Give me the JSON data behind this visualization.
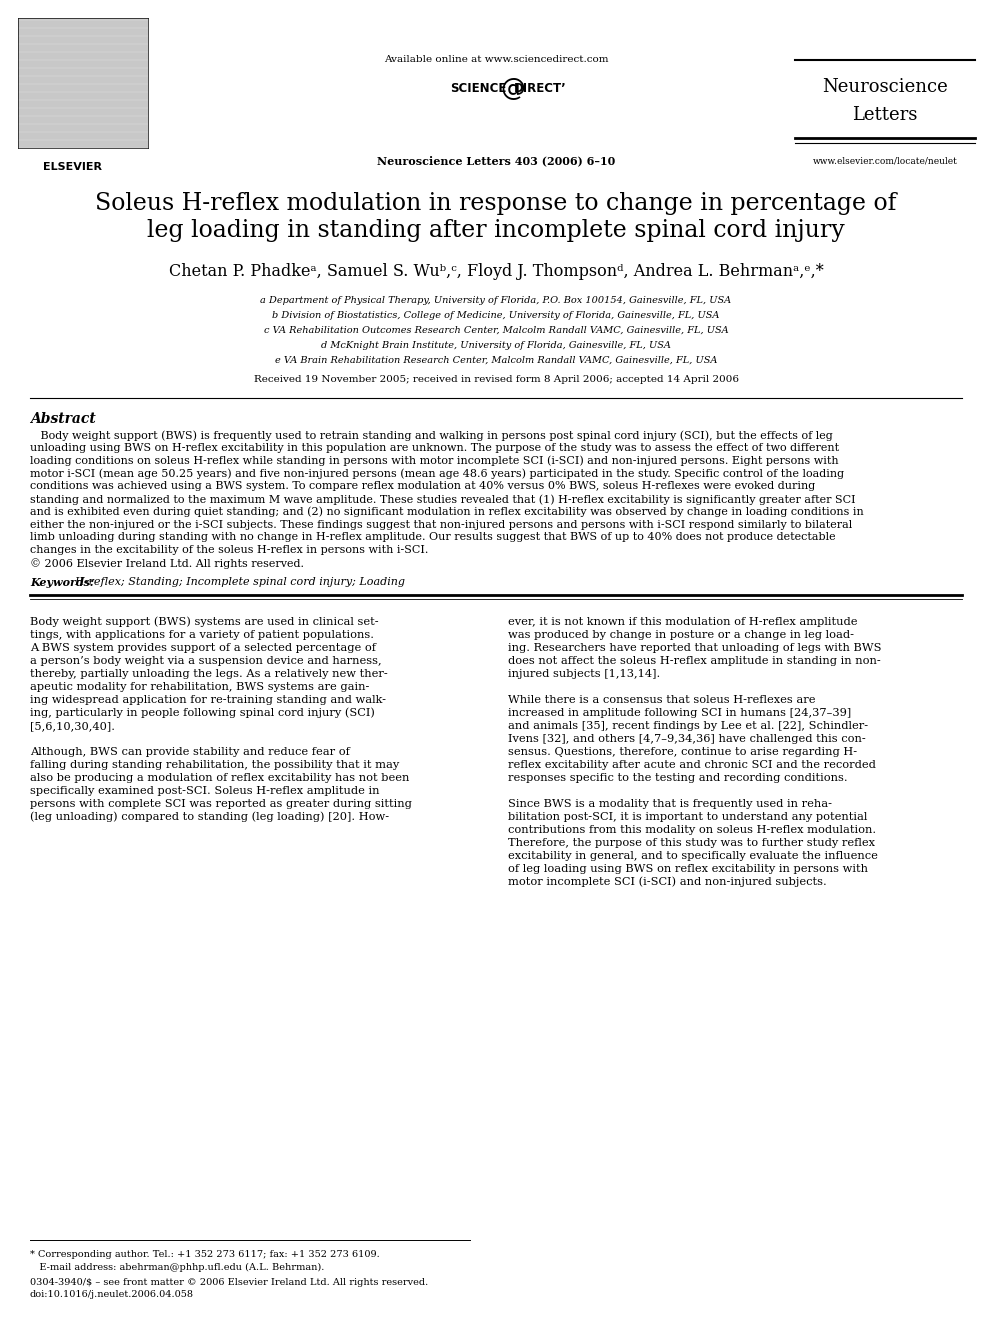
{
  "bg_color": "#ffffff",
  "title_article": "Soleus H-reflex modulation in response to change in percentage of\nleg loading in standing after incomplete spinal cord injury",
  "authors_plain": "Chetan P. Phadke",
  "journal_info": "Neuroscience Letters 403 (2006) 6–10",
  "available_online": "Available online at www.sciencedirect.com",
  "journal_name_line1": "Neuroscience",
  "journal_name_line2": "Letters",
  "website": "www.elsevier.com/locate/neulet",
  "abstract_title": "Abstract",
  "keywords_label": "Keywords:",
  "keywords_text": "  H-reflex; Standing; Incomplete spinal cord injury; Loading",
  "affil_a": "a Department of Physical Therapy, University of Florida, P.O. Box 100154, Gainesville, FL, USA",
  "affil_b": "b Division of Biostatistics, College of Medicine, University of Florida, Gainesville, FL, USA",
  "affil_c": "c VA Rehabilitation Outcomes Research Center, Malcolm Randall VAMC, Gainesville, FL, USA",
  "affil_d": "d McKnight Brain Institute, University of Florida, Gainesville, FL, USA",
  "affil_e": "e VA Brain Rehabilitation Research Center, Malcolm Randall VAMC, Gainesville, FL, USA",
  "received": "Received 19 November 2005; received in revised form 8 April 2006; accepted 14 April 2006",
  "footer_star": "* Corresponding author. Tel.: +1 352 273 6117; fax: +1 352 273 6109.",
  "footer_email": "   E-mail address: abehrman@phhp.ufl.edu (A.L. Behrman).",
  "footer_issn": "0304-3940/$ – see front matter © 2006 Elsevier Ireland Ltd. All rights reserved.",
  "footer_doi": "doi:10.1016/j.neulet.2006.04.058",
  "abstract_lines": [
    "   Body weight support (BWS) is frequently used to retrain standing and walking in persons post spinal cord injury (SCI), but the effects of leg",
    "unloading using BWS on H-reflex excitability in this population are unknown. The purpose of the study was to assess the effect of two different",
    "loading conditions on soleus H-reflex while standing in persons with motor incomplete SCI (i-SCI) and non-injured persons. Eight persons with",
    "motor i-SCI (mean age 50.25 years) and five non-injured persons (mean age 48.6 years) participated in the study. Specific control of the loading",
    "conditions was achieved using a BWS system. To compare reflex modulation at 40% versus 0% BWS, soleus H-reflexes were evoked during",
    "standing and normalized to the maximum M wave amplitude. These studies revealed that (1) H-reflex excitability is significantly greater after SCI",
    "and is exhibited even during quiet standing; and (2) no significant modulation in reflex excitability was observed by change in loading conditions in",
    "either the non-injured or the i-SCI subjects. These findings suggest that non-injured persons and persons with i-SCI respond similarly to bilateral",
    "limb unloading during standing with no change in H-reflex amplitude. Our results suggest that BWS of up to 40% does not produce detectable",
    "changes in the excitability of the soleus H-reflex in persons with i-SCI.",
    "© 2006 Elsevier Ireland Ltd. All rights reserved."
  ],
  "col1_lines": [
    "Body weight support (BWS) systems are used in clinical set-",
    "tings, with applications for a variety of patient populations.",
    "A BWS system provides support of a selected percentage of",
    "a person’s body weight via a suspension device and harness,",
    "thereby, partially unloading the legs. As a relatively new ther-",
    "apeutic modality for rehabilitation, BWS systems are gain-",
    "ing widespread application for re-training standing and walk-",
    "ing, particularly in people following spinal cord injury (SCI)",
    "[5,6,10,30,40].",
    "",
    "Although, BWS can provide stability and reduce fear of",
    "falling during standing rehabilitation, the possibility that it may",
    "also be producing a modulation of reflex excitability has not been",
    "specifically examined post-SCI. Soleus H-reflex amplitude in",
    "persons with complete SCI was reported as greater during sitting",
    "(leg unloading) compared to standing (leg loading) [20]. How-"
  ],
  "col2_lines": [
    "ever, it is not known if this modulation of H-reflex amplitude",
    "was produced by change in posture or a change in leg load-",
    "ing. Researchers have reported that unloading of legs with BWS",
    "does not affect the soleus H-reflex amplitude in standing in non-",
    "injured subjects [1,13,14].",
    "",
    "While there is a consensus that soleus H-reflexes are",
    "increased in amplitude following SCI in humans [24,37–39]",
    "and animals [35], recent findings by Lee et al. [22], Schindler-",
    "Ivens [32], and others [4,7–9,34,36] have challenged this con-",
    "sensus. Questions, therefore, continue to arise regarding H-",
    "reflex excitability after acute and chronic SCI and the recorded",
    "responses specific to the testing and recording conditions.",
    "",
    "Since BWS is a modality that is frequently used in reha-",
    "bilitation post-SCI, it is important to understand any potential",
    "contributions from this modality on soleus H-reflex modulation.",
    "Therefore, the purpose of this study was to further study reflex",
    "excitability in general, and to specifically evaluate the influence",
    "of leg loading using BWS on reflex excitability in persons with",
    "motor incomplete SCI (i-SCI) and non-injured subjects."
  ]
}
